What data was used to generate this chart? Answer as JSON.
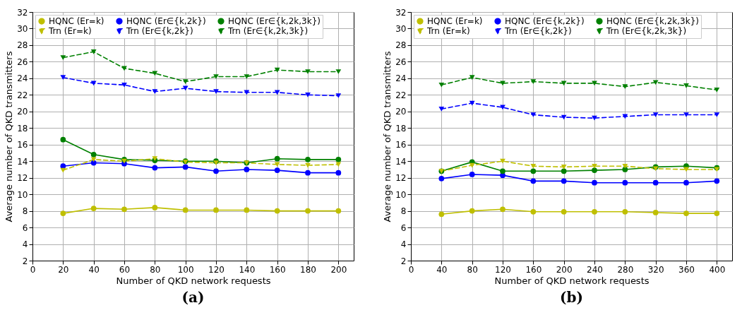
{
  "chart_data": [
    {
      "type": "line",
      "title": "(a)",
      "xlabel": "Number of QKD network requests",
      "ylabel": "Average number of QKD transmitters",
      "x": [
        20,
        40,
        60,
        80,
        100,
        120,
        140,
        160,
        180,
        200
      ],
      "xlim": [
        0,
        210
      ],
      "xticks": [
        0,
        20,
        40,
        60,
        80,
        100,
        120,
        140,
        160,
        180,
        200
      ],
      "ylim": [
        2,
        32
      ],
      "yticks": [
        2,
        4,
        6,
        8,
        10,
        12,
        14,
        16,
        18,
        20,
        22,
        24,
        26,
        28,
        30,
        32
      ],
      "grid": true,
      "legend": "top left",
      "series": [
        {
          "name": "HQNC (Er=k)",
          "color": "#bfbf00",
          "marker": "circle",
          "line_style": "solid",
          "values": [
            7.7,
            8.3,
            8.2,
            8.4,
            8.1,
            8.1,
            8.1,
            8.0,
            8.0,
            8.0
          ]
        },
        {
          "name": "HQNC (Er∈{k,2k})",
          "color": "#0000ff",
          "marker": "circle",
          "line_style": "solid",
          "values": [
            13.4,
            13.8,
            13.7,
            13.2,
            13.3,
            12.8,
            13.0,
            12.9,
            12.6,
            12.6
          ]
        },
        {
          "name": "HQNC (Er∈{k,2k,3k})",
          "color": "#008000",
          "marker": "circle",
          "line_style": "solid",
          "values": [
            16.6,
            14.8,
            14.2,
            14.1,
            14.0,
            14.0,
            13.8,
            14.3,
            14.2,
            14.2
          ]
        },
        {
          "name": "Trn (Er=k)",
          "color": "#bfbf00",
          "marker": "triangle-down",
          "line_style": "dashed",
          "values": [
            12.9,
            14.2,
            14.0,
            14.3,
            13.9,
            13.8,
            13.8,
            13.6,
            13.5,
            13.6
          ]
        },
        {
          "name": "Trn (Er∈{k,2k})",
          "color": "#0000ff",
          "marker": "triangle-down",
          "line_style": "dashed",
          "values": [
            24.1,
            23.4,
            23.2,
            22.4,
            22.8,
            22.4,
            22.3,
            22.3,
            22.0,
            21.9
          ]
        },
        {
          "name": "Trn (Er∈{k,2k,3k})",
          "color": "#008000",
          "marker": "triangle-down",
          "line_style": "dashed",
          "values": [
            26.5,
            27.2,
            25.2,
            24.6,
            23.6,
            24.2,
            24.2,
            25.0,
            24.8,
            24.8
          ]
        }
      ]
    },
    {
      "type": "line",
      "title": "(b)",
      "xlabel": "Number of QKD network requests",
      "ylabel": "Average number of QKD transmitters",
      "x": [
        40,
        80,
        120,
        160,
        200,
        240,
        280,
        320,
        360,
        400
      ],
      "xlim": [
        0,
        420
      ],
      "xticks": [
        0,
        40,
        80,
        120,
        160,
        200,
        240,
        280,
        320,
        360,
        400
      ],
      "ylim": [
        2,
        32
      ],
      "yticks": [
        2,
        4,
        6,
        8,
        10,
        12,
        14,
        16,
        18,
        20,
        22,
        24,
        26,
        28,
        30,
        32
      ],
      "grid": true,
      "legend": "top left",
      "series": [
        {
          "name": "HQNC (Er=k)",
          "color": "#bfbf00",
          "marker": "circle",
          "line_style": "solid",
          "values": [
            7.6,
            8.0,
            8.2,
            7.9,
            7.9,
            7.9,
            7.9,
            7.8,
            7.7,
            7.7
          ]
        },
        {
          "name": "HQNC (Er∈{k,2k})",
          "color": "#0000ff",
          "marker": "circle",
          "line_style": "solid",
          "values": [
            11.9,
            12.4,
            12.3,
            11.6,
            11.6,
            11.4,
            11.4,
            11.4,
            11.4,
            11.6
          ]
        },
        {
          "name": "HQNC (Er∈{k,2k,3k})",
          "color": "#008000",
          "marker": "circle",
          "line_style": "solid",
          "values": [
            12.8,
            13.9,
            12.8,
            12.8,
            12.8,
            12.9,
            13.0,
            13.3,
            13.4,
            13.2
          ]
        },
        {
          "name": "Trn (Er=k)",
          "color": "#bfbf00",
          "marker": "triangle-down",
          "line_style": "dashed",
          "values": [
            12.8,
            13.5,
            14.0,
            13.4,
            13.3,
            13.4,
            13.4,
            13.1,
            13.0,
            13.0
          ]
        },
        {
          "name": "Trn (Er∈{k,2k})",
          "color": "#0000ff",
          "marker": "triangle-down",
          "line_style": "dashed",
          "values": [
            20.3,
            21.0,
            20.5,
            19.6,
            19.3,
            19.2,
            19.4,
            19.6,
            19.6,
            19.6
          ]
        },
        {
          "name": "Trn (Er∈{k,2k,3k})",
          "color": "#008000",
          "marker": "triangle-down",
          "line_style": "dashed",
          "values": [
            23.2,
            24.1,
            23.4,
            23.6,
            23.4,
            23.4,
            23.0,
            23.5,
            23.1,
            22.6
          ]
        }
      ]
    }
  ]
}
